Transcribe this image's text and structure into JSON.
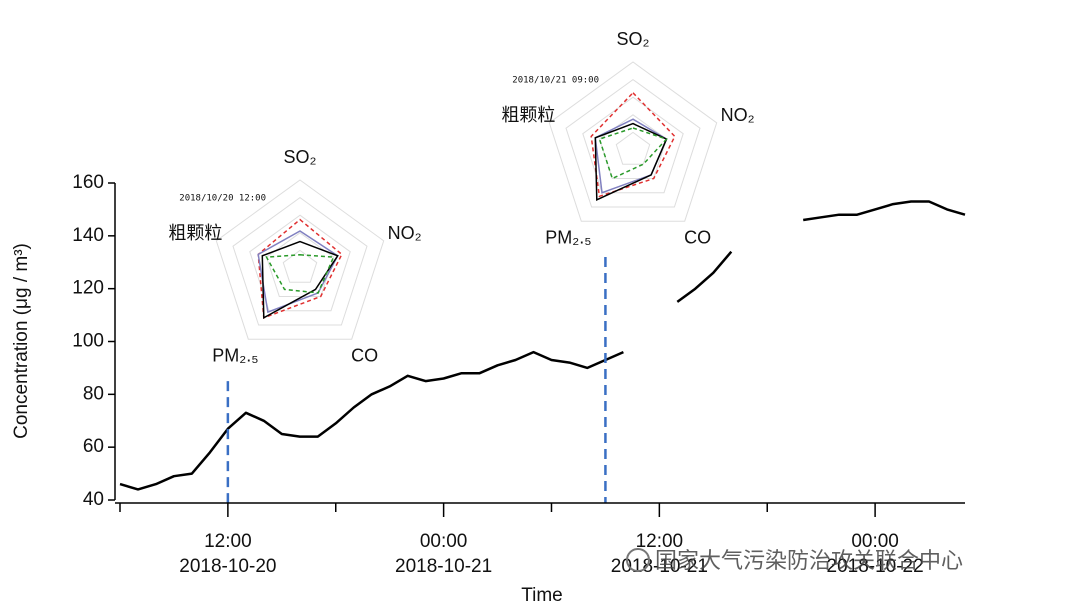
{
  "chart_data": [
    {
      "type": "line",
      "x_label": "Time",
      "y_label": "Concentration (μg / m³)",
      "x": [
        "2018-10-20 06:00",
        "2018-10-20 07:00",
        "2018-10-20 08:00",
        "2018-10-20 09:00",
        "2018-10-20 10:00",
        "2018-10-20 11:00",
        "2018-10-20 12:00",
        "2018-10-20 13:00",
        "2018-10-20 14:00",
        "2018-10-20 15:00",
        "2018-10-20 16:00",
        "2018-10-20 17:00",
        "2018-10-20 18:00",
        "2018-10-20 19:00",
        "2018-10-20 20:00",
        "2018-10-20 21:00",
        "2018-10-20 22:00",
        "2018-10-20 23:00",
        "2018-10-21 00:00",
        "2018-10-21 01:00",
        "2018-10-21 02:00",
        "2018-10-21 03:00",
        "2018-10-21 04:00",
        "2018-10-21 05:00",
        "2018-10-21 06:00",
        "2018-10-21 07:00",
        "2018-10-21 08:00",
        "2018-10-21 09:00",
        "2018-10-21 10:00",
        "2018-10-21 11:00",
        "2018-10-21 12:00",
        "2018-10-21 13:00",
        "2018-10-21 14:00",
        "2018-10-21 15:00",
        "2018-10-21 16:00",
        "2018-10-21 17:00",
        "2018-10-21 18:00",
        "2018-10-21 19:00",
        "2018-10-21 20:00",
        "2018-10-21 21:00",
        "2018-10-21 22:00",
        "2018-10-21 23:00",
        "2018-10-22 00:00",
        "2018-10-22 01:00",
        "2018-10-22 02:00",
        "2018-10-22 03:00",
        "2018-10-22 04:00",
        "2018-10-22 05:00"
      ],
      "series": [
        {
          "color": "#000000",
          "values": [
            46,
            44,
            46,
            49,
            50,
            58,
            67,
            73,
            70,
            65,
            64,
            64,
            69,
            75,
            80,
            83,
            87,
            85,
            86,
            88,
            88,
            91,
            93,
            96,
            93,
            92,
            90,
            93,
            96,
            null,
            null,
            115,
            120,
            126,
            134,
            null,
            null,
            null,
            146,
            147,
            148,
            148,
            150,
            152,
            153,
            153,
            150,
            148
          ]
        }
      ],
      "xlim": [
        "2018-10-20 06:00",
        "2018-10-22 05:00"
      ],
      "xticks": [
        {
          "value": "2018-10-20 12:00",
          "label": "12:00",
          "date": "2018-10-20"
        },
        {
          "value": "2018-10-21 00:00",
          "label": "00:00",
          "date": "2018-10-21"
        },
        {
          "value": "2018-10-21 12:00",
          "label": "12:00",
          "date": "2018-10-21"
        },
        {
          "value": "2018-10-22 00:00",
          "label": "00:00",
          "date": "2018-10-22"
        }
      ],
      "xminorticks": [
        "2018-10-20 06:00",
        "2018-10-20 18:00",
        "2018-10-21 06:00",
        "2018-10-21 18:00"
      ],
      "ylim": [
        40,
        160
      ],
      "yticks": [
        40,
        60,
        80,
        100,
        120,
        140,
        160
      ],
      "markers": [
        {
          "x": "2018-10-20 12:00",
          "y": 85,
          "color": "#3a6fc4"
        },
        {
          "x": "2018-10-21 09:00",
          "y": 132,
          "color": "#3a6fc4"
        }
      ],
      "watermark": "国家大气污染防治攻关联合中心"
    },
    {
      "type": "radar",
      "title": "2018/10/20 12:00",
      "categories": [
        "SO₂",
        "NO₂",
        "CO",
        "PM₂.₅",
        "粗颗粒"
      ],
      "rlim": [
        0,
        1
      ],
      "rticks": [
        0.2,
        0.4,
        0.6,
        0.8,
        1
      ],
      "series": [
        {
          "color": "#e03030",
          "dash": true,
          "values": [
            0.55,
            0.5,
            0.4,
            0.7,
            0.5
          ]
        },
        {
          "color": "#8080c0",
          "dash": false,
          "values": [
            0.42,
            0.45,
            0.35,
            0.62,
            0.5
          ]
        },
        {
          "color": "#000000",
          "dash": false,
          "values": [
            0.3,
            0.45,
            0.3,
            0.7,
            0.45
          ]
        },
        {
          "color": "#2a9a2a",
          "dash": true,
          "values": [
            0.15,
            0.4,
            0.35,
            0.3,
            0.4
          ]
        }
      ]
    },
    {
      "type": "radar",
      "title": "2018/10/21 09:00",
      "categories": [
        "SO₂",
        "NO₂",
        "CO",
        "PM₂.₅",
        "粗颗粒"
      ],
      "rlim": [
        0,
        1
      ],
      "rticks": [
        0.2,
        0.4,
        0.6,
        0.8,
        1
      ],
      "series": [
        {
          "color": "#e03030",
          "dash": true,
          "values": [
            0.65,
            0.5,
            0.4,
            0.65,
            0.5
          ]
        },
        {
          "color": "#8080c0",
          "dash": false,
          "values": [
            0.35,
            0.4,
            0.35,
            0.6,
            0.45
          ]
        },
        {
          "color": "#000000",
          "dash": false,
          "values": [
            0.3,
            0.4,
            0.35,
            0.7,
            0.45
          ]
        },
        {
          "color": "#2a9a2a",
          "dash": true,
          "values": [
            0.25,
            0.4,
            0.2,
            0.4,
            0.4
          ]
        }
      ]
    }
  ]
}
